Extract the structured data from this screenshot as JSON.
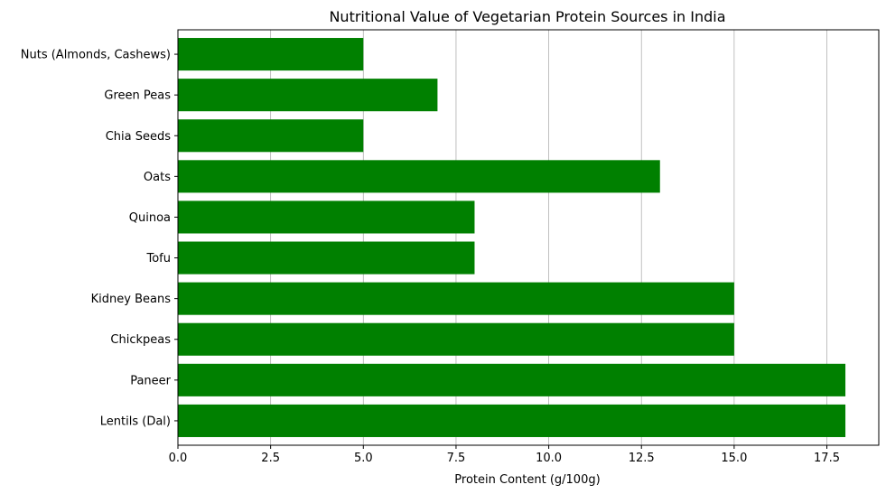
{
  "chart_data": {
    "type": "bar",
    "orientation": "horizontal",
    "title": "Nutritional Value of Vegetarian Protein Sources in India",
    "xlabel": "Protein Content (g/100g)",
    "ylabel": "",
    "xlim": [
      0,
      18.9
    ],
    "xticks": [
      "0.0",
      "2.5",
      "5.0",
      "7.5",
      "10.0",
      "12.5",
      "15.0",
      "17.5"
    ],
    "grid": "x",
    "bar_color": "#008000",
    "categories": [
      "Lentils (Dal)",
      "Paneer",
      "Chickpeas",
      "Kidney Beans",
      "Tofu",
      "Quinoa",
      "Oats",
      "Chia Seeds",
      "Green Peas",
      "Nuts (Almonds, Cashews)"
    ],
    "values": [
      18,
      18,
      15,
      15,
      8,
      8,
      13,
      5,
      7,
      5
    ]
  }
}
